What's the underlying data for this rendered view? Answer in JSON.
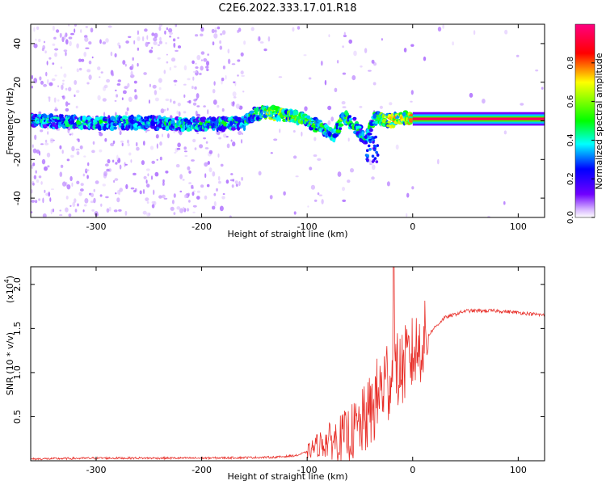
{
  "title": "C2E6.2022.333.17.01.R18",
  "chart_data": [
    {
      "type": "heatmap",
      "xlabel": "Height of straight line (km)",
      "ylabel": "Frequency (Hz)",
      "xlim": [
        -362,
        125
      ],
      "ylim": [
        -50,
        50
      ],
      "xticks": [
        -300,
        -200,
        -100,
        0,
        100
      ],
      "yticks": [
        -40,
        -20,
        0,
        20,
        40
      ],
      "colorbar": {
        "label": "Normalized spectral amplitude",
        "range": [
          0.0,
          1.0
        ],
        "ticks": [
          "0.0",
          "0.2",
          "0.4",
          "0.6",
          "0.8"
        ],
        "colormap": [
          "#ffffff",
          "#7000ff",
          "#0000ff",
          "#00ffff",
          "#00ff00",
          "#ffff00",
          "#ff0000",
          "#ff0080"
        ]
      },
      "ridge": [
        {
          "x": -355,
          "f": 0,
          "amp": 0.45
        },
        {
          "x": -300,
          "f": -1,
          "amp": 0.5
        },
        {
          "x": -250,
          "f": -1,
          "amp": 0.45
        },
        {
          "x": -200,
          "f": -2,
          "amp": 0.5
        },
        {
          "x": -160,
          "f": -1,
          "amp": 0.5
        },
        {
          "x": -150,
          "f": 4,
          "amp": 0.55
        },
        {
          "x": -130,
          "f": 4,
          "amp": 0.75
        },
        {
          "x": -110,
          "f": 2,
          "amp": 0.6
        },
        {
          "x": -95,
          "f": -1,
          "amp": 0.6
        },
        {
          "x": -85,
          "f": -4,
          "amp": 0.55
        },
        {
          "x": -75,
          "f": -8,
          "amp": 0.5
        },
        {
          "x": -65,
          "f": 2,
          "amp": 0.6
        },
        {
          "x": -55,
          "f": -2,
          "amp": 0.55
        },
        {
          "x": -45,
          "f": -10,
          "amp": 0.45
        },
        {
          "x": -35,
          "f": 2,
          "amp": 0.6
        },
        {
          "x": -20,
          "f": 0,
          "amp": 0.8
        },
        {
          "x": -5,
          "f": 2,
          "amp": 0.8
        },
        {
          "x": 0,
          "f": 1,
          "amp": 0.85
        },
        {
          "x": 125,
          "f": 1,
          "amp": 0.95
        }
      ]
    },
    {
      "type": "line",
      "xlabel": "Height of straight line (km)",
      "ylabel": "SNR (10 * v/v)",
      "scale_label": "(x10",
      "scale_exp": "4",
      "scale_close": ")",
      "xlim": [
        -362,
        125
      ],
      "ylim": [
        0,
        2.2
      ],
      "xticks": [
        -300,
        -200,
        -100,
        0,
        100
      ],
      "yticks": [
        0.5,
        1.0,
        1.5,
        2.0
      ],
      "series": [
        {
          "color": "#e8302a",
          "x": [
            -362,
            -300,
            -200,
            -130,
            -110,
            -100,
            -90,
            -80,
            -70,
            -60,
            -50,
            -40,
            -30,
            -25,
            -20,
            -15,
            -10,
            0,
            10,
            20,
            30,
            50,
            80,
            100,
            125
          ],
          "values": [
            0.02,
            0.03,
            0.03,
            0.04,
            0.06,
            0.1,
            0.18,
            0.22,
            0.25,
            0.3,
            0.38,
            0.55,
            0.8,
            0.9,
            1.0,
            1.0,
            1.05,
            1.2,
            1.35,
            1.5,
            1.62,
            1.7,
            1.7,
            1.68,
            1.65
          ]
        }
      ],
      "spike": {
        "x": -18,
        "value": 2.2
      }
    }
  ]
}
